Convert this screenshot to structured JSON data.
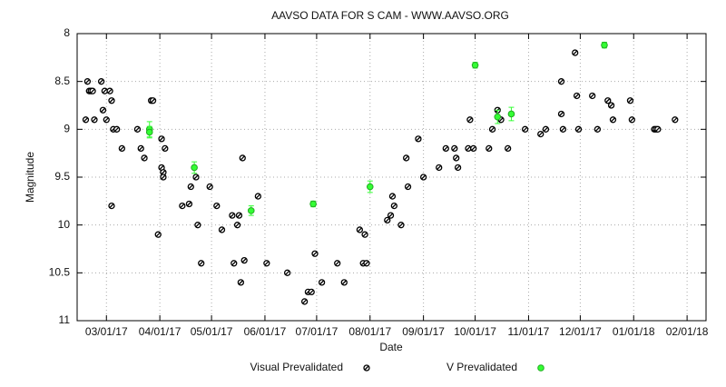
{
  "chart_data": {
    "type": "scatter",
    "title": "AAVSO DATA FOR S CAM - WWW.AAVSO.ORG",
    "x_label": "Date",
    "y_label": "Magnitude",
    "xlim": [
      "02/12/17",
      "02/12/18"
    ],
    "xticks": [
      "03/01/17",
      "04/01/17",
      "05/01/17",
      "06/01/17",
      "07/01/17",
      "08/01/17",
      "09/01/17",
      "10/01/17",
      "11/01/17",
      "12/01/17",
      "01/01/18",
      "02/01/18"
    ],
    "ylim": [
      11,
      8
    ],
    "yticks": [
      8,
      8.5,
      9,
      9.5,
      10,
      10.5,
      11
    ],
    "grid": true,
    "legend": "bottom",
    "series": [
      {
        "name": "Visual Prevalidated",
        "color": "#000000",
        "x": [
          "02/17/17",
          "02/18/17",
          "02/19/17",
          "02/20/17",
          "02/21/17",
          "02/22/17",
          "02/26/17",
          "02/27/17",
          "02/28/17",
          "03/01/17",
          "03/03/17",
          "03/04/17",
          "03/04/17",
          "03/05/17",
          "03/07/17",
          "03/10/17",
          "03/19/17",
          "03/21/17",
          "03/23/17",
          "03/27/17",
          "03/28/17",
          "03/31/17",
          "04/02/17",
          "04/02/17",
          "04/03/17",
          "04/03/17",
          "04/04/17",
          "04/14/17",
          "04/18/17",
          "04/19/17",
          "04/22/17",
          "04/23/17",
          "04/25/17",
          "04/30/17",
          "05/04/17",
          "05/07/17",
          "05/13/17",
          "05/14/17",
          "05/16/17",
          "05/17/17",
          "05/18/17",
          "05/19/17",
          "05/20/17",
          "05/28/17",
          "06/02/17",
          "06/14/17",
          "06/24/17",
          "06/26/17",
          "06/28/17",
          "06/30/17",
          "07/04/17",
          "07/13/17",
          "07/17/17",
          "07/26/17",
          "07/28/17",
          "07/29/17",
          "07/30/17",
          "08/11/17",
          "08/13/17",
          "08/14/17",
          "08/15/17",
          "08/19/17",
          "08/22/17",
          "08/23/17",
          "08/29/17",
          "09/01/17",
          "09/10/17",
          "09/14/17",
          "09/19/17",
          "09/20/17",
          "09/21/17",
          "09/27/17",
          "09/28/17",
          "09/30/17",
          "10/09/17",
          "10/11/17",
          "10/14/17",
          "10/16/17",
          "10/20/17",
          "10/30/17",
          "11/08/17",
          "11/11/17",
          "11/20/17",
          "11/20/17",
          "11/21/17",
          "11/28/17",
          "11/29/17",
          "11/30/17",
          "12/08/17",
          "12/11/17",
          "12/17/17",
          "12/19/17",
          "12/20/17",
          "12/30/17",
          "12/31/17",
          "01/13/18",
          "01/14/18",
          "01/15/18",
          "01/25/18"
        ],
        "values": [
          8.9,
          8.5,
          8.6,
          8.6,
          8.6,
          8.9,
          8.5,
          8.8,
          8.6,
          8.9,
          8.6,
          8.7,
          9.8,
          9.0,
          9.0,
          9.2,
          9.0,
          9.2,
          9.3,
          8.7,
          8.7,
          10.1,
          9.1,
          9.4,
          9.45,
          9.5,
          9.2,
          9.8,
          9.78,
          9.6,
          9.5,
          10.0,
          10.4,
          9.6,
          9.8,
          10.05,
          9.9,
          10.4,
          10.0,
          9.9,
          10.6,
          9.3,
          10.37,
          9.7,
          10.4,
          10.5,
          10.8,
          10.7,
          10.7,
          10.3,
          10.6,
          10.4,
          10.6,
          10.05,
          10.4,
          10.1,
          10.4,
          9.95,
          9.9,
          9.7,
          9.8,
          10.0,
          9.3,
          9.6,
          9.1,
          9.5,
          9.4,
          9.2,
          9.2,
          9.3,
          9.4,
          9.2,
          8.9,
          9.2,
          9.2,
          9.0,
          8.8,
          8.9,
          9.2,
          9.0,
          9.05,
          9.0,
          8.5,
          8.84,
          9.0,
          8.2,
          8.65,
          9.0,
          8.65,
          9.0,
          8.7,
          8.75,
          8.9,
          8.7,
          8.9,
          9.0,
          9.0,
          9.0,
          8.9
        ]
      },
      {
        "name": "V Prevalidated",
        "color": "#33ff33",
        "x": [
          "03/26/17",
          "03/26/17",
          "04/21/17",
          "05/24/17",
          "06/29/17",
          "08/01/17",
          "10/01/17",
          "10/14/17",
          "10/22/17",
          "12/15/17"
        ],
        "values": [
          9.0,
          9.03,
          9.4,
          9.85,
          9.78,
          9.6,
          8.33,
          8.87,
          8.84,
          8.12
        ],
        "errors": [
          0.08,
          0.06,
          0.06,
          0.05,
          0.03,
          0.06,
          0.03,
          0.07,
          0.07,
          0.03
        ]
      }
    ]
  }
}
